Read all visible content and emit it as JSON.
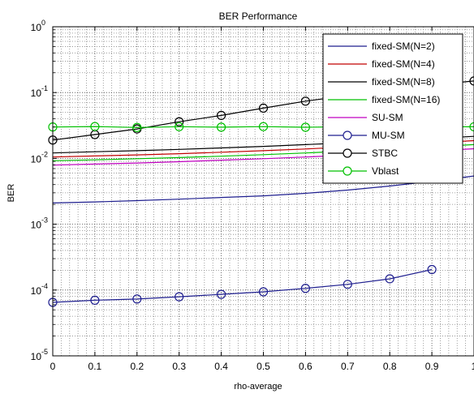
{
  "chart_data": {
    "type": "line",
    "title": "BER Performance",
    "xlabel": "rho-average",
    "ylabel": "BER",
    "xlim": [
      0,
      1
    ],
    "ylim": [
      1e-05,
      1
    ],
    "y_scale": "log",
    "grid": "major and minor (dotted)",
    "legend_position": "top-right",
    "x_ticks": [
      0,
      0.1,
      0.2,
      0.3,
      0.4,
      0.5,
      0.6,
      0.7,
      0.8,
      0.9,
      1
    ],
    "x_tick_labels": [
      "0",
      "0.1",
      "0.2",
      "0.3",
      "0.4",
      "0.5",
      "0.6",
      "0.7",
      "0.8",
      "0.9",
      "1"
    ],
    "y_ticks": [
      {
        "value": 1,
        "base": "10",
        "exp": "0"
      },
      {
        "value": 0.1,
        "base": "10",
        "exp": "-1"
      },
      {
        "value": 0.01,
        "base": "10",
        "exp": "-2"
      },
      {
        "value": 0.001,
        "base": "10",
        "exp": "-3"
      },
      {
        "value": 0.0001,
        "base": "10",
        "exp": "-4"
      },
      {
        "value": 1e-05,
        "base": "10",
        "exp": "-5"
      }
    ],
    "series": [
      {
        "name": "fixed-SM(N=2)",
        "color": "#1f1f8f",
        "marker": "none",
        "x": [
          0,
          0.1,
          0.2,
          0.3,
          0.4,
          0.5,
          0.6,
          0.7,
          0.8,
          0.9,
          1
        ],
        "y": [
          0.0021,
          0.00218,
          0.00228,
          0.0024,
          0.00255,
          0.0027,
          0.00295,
          0.0033,
          0.0038,
          0.0045,
          0.0054
        ]
      },
      {
        "name": "fixed-SM(N=4)",
        "color": "#c00000",
        "marker": "none",
        "x": [
          0,
          0.1,
          0.2,
          0.3,
          0.4,
          0.5,
          0.6,
          0.7,
          0.8,
          0.9,
          1
        ],
        "y": [
          0.0105,
          0.0109,
          0.0113,
          0.0118,
          0.0124,
          0.0131,
          0.0139,
          0.0149,
          0.016,
          0.0172,
          0.0186
        ]
      },
      {
        "name": "fixed-SM(N=8)",
        "color": "#000000",
        "marker": "none",
        "x": [
          0,
          0.1,
          0.2,
          0.3,
          0.4,
          0.5,
          0.6,
          0.7,
          0.8,
          0.9,
          1
        ],
        "y": [
          0.0121,
          0.0126,
          0.0131,
          0.0137,
          0.0144,
          0.0152,
          0.0162,
          0.0173,
          0.0186,
          0.02,
          0.0216
        ]
      },
      {
        "name": "fixed-SM(N=16)",
        "color": "#00c000",
        "marker": "none",
        "x": [
          0,
          0.1,
          0.2,
          0.3,
          0.4,
          0.5,
          0.6,
          0.7,
          0.8,
          0.9,
          1
        ],
        "y": [
          0.0092,
          0.0095,
          0.0099,
          0.0103,
          0.0108,
          0.0114,
          0.0121,
          0.0129,
          0.0139,
          0.015,
          0.0162
        ]
      },
      {
        "name": "SU-SM",
        "color": "#c000c0",
        "marker": "none",
        "x": [
          0,
          0.1,
          0.2,
          0.3,
          0.4,
          0.5,
          0.6,
          0.7,
          0.8,
          0.9,
          1
        ],
        "y": [
          0.0079,
          0.0082,
          0.0085,
          0.0089,
          0.0094,
          0.0099,
          0.0105,
          0.0112,
          0.012,
          0.0129,
          0.014
        ]
      },
      {
        "name": "MU-SM",
        "color": "#1f1f8f",
        "marker": "circle",
        "x": [
          0,
          0.1,
          0.2,
          0.3,
          0.4,
          0.5,
          0.6,
          0.7,
          0.8,
          0.9
        ],
        "y": [
          6.5e-05,
          7e-05,
          7.3e-05,
          7.9e-05,
          8.6e-05,
          9.4e-05,
          0.000106,
          0.000122,
          0.000148,
          0.000205
        ]
      },
      {
        "name": "STBC",
        "color": "#000000",
        "marker": "circle",
        "x": [
          0,
          0.1,
          0.2,
          0.3,
          0.4,
          0.5,
          0.6,
          0.7,
          0.8,
          0.9,
          1
        ],
        "y": [
          0.019,
          0.023,
          0.028,
          0.036,
          0.045,
          0.058,
          0.074,
          0.09,
          0.11,
          0.13,
          0.15
        ]
      },
      {
        "name": "Vblast",
        "color": "#00c000",
        "marker": "circle",
        "x": [
          0,
          0.1,
          0.2,
          0.3,
          0.4,
          0.5,
          0.6,
          0.7,
          0.8,
          0.9,
          1
        ],
        "y": [
          0.03,
          0.0305,
          0.0295,
          0.0303,
          0.0298,
          0.0304,
          0.0297,
          0.0302,
          0.0299,
          0.0301,
          0.0302
        ]
      }
    ]
  }
}
